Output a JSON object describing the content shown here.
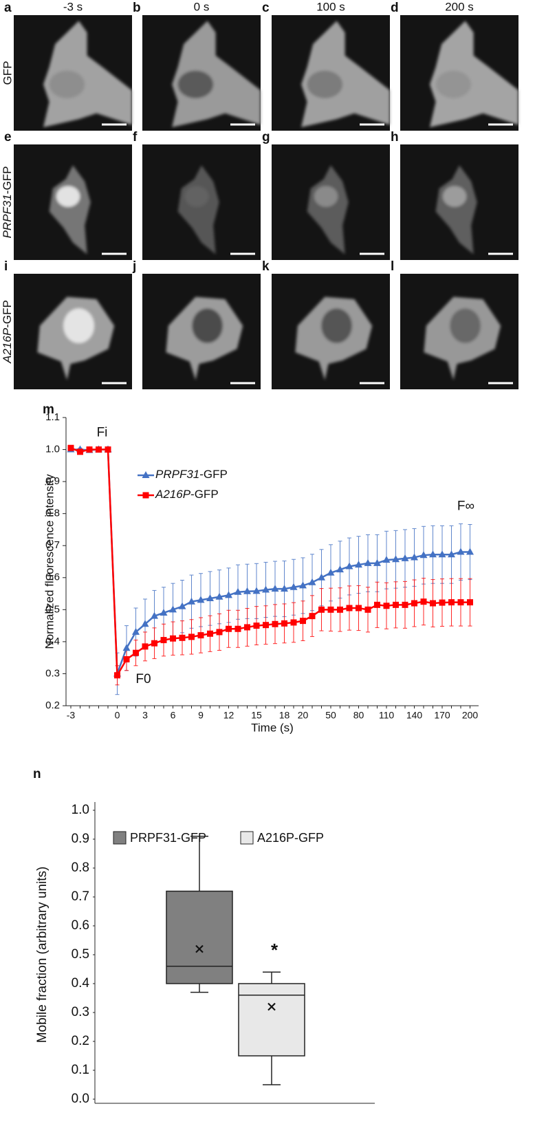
{
  "figure": {
    "columns": [
      "-3 s",
      "0 s",
      "100 s",
      "200 s"
    ],
    "rows": [
      {
        "label": "GFP",
        "panels": [
          "a",
          "b",
          "c",
          "d"
        ]
      },
      {
        "label": "PRPF31-GFP",
        "panels": [
          "e",
          "f",
          "g",
          "h"
        ]
      },
      {
        "label": "A216P-GFP",
        "panels": [
          "i",
          "j",
          "k",
          "l"
        ]
      }
    ]
  },
  "chart_data": [
    {
      "type": "line",
      "panel_label": "m",
      "x_label": "Time (s)",
      "y_label": "Normalized fluorescence intensity",
      "categories": [
        "-3",
        null,
        null,
        null,
        null,
        "0",
        null,
        null,
        "3",
        null,
        null,
        "6",
        null,
        null,
        "9",
        null,
        null,
        "12",
        null,
        null,
        "15",
        null,
        null,
        "18",
        null,
        "20",
        null,
        null,
        "50",
        null,
        null,
        "80",
        null,
        null,
        "110",
        null,
        null,
        "140",
        null,
        null,
        "170",
        null,
        null,
        "200"
      ],
      "series": [
        {
          "name": "PRPF31-GFP",
          "color": "#4472c4",
          "marker": "triangle",
          "values": [
            1.0,
            1.0,
            0.998,
            1.0,
            1.0,
            0.3,
            0.38,
            0.43,
            0.455,
            0.48,
            0.49,
            0.5,
            0.51,
            0.525,
            0.53,
            0.535,
            0.54,
            0.545,
            0.555,
            0.557,
            0.558,
            0.562,
            0.565,
            0.565,
            0.57,
            0.575,
            0.585,
            0.6,
            0.615,
            0.625,
            0.635,
            0.64,
            0.645,
            0.645,
            0.655,
            0.657,
            0.66,
            0.663,
            0.67,
            0.672,
            0.672,
            0.672,
            0.68,
            0.68
          ],
          "errors": [
            0.005,
            0.005,
            0.005,
            0.005,
            0.005,
            0.065,
            0.07,
            0.075,
            0.078,
            0.08,
            0.08,
            0.082,
            0.082,
            0.083,
            0.083,
            0.084,
            0.084,
            0.085,
            0.085,
            0.085,
            0.086,
            0.086,
            0.086,
            0.087,
            0.087,
            0.087,
            0.088,
            0.088,
            0.088,
            0.089,
            0.089,
            0.089,
            0.089,
            0.089,
            0.09,
            0.09,
            0.09,
            0.09,
            0.09,
            0.09,
            0.09,
            0.09,
            0.088,
            0.086
          ]
        },
        {
          "name": "A216P-GFP",
          "color": "#ff0000",
          "marker": "square",
          "values": [
            1.005,
            0.993,
            1.0,
            1.0,
            1.0,
            0.295,
            0.345,
            0.365,
            0.385,
            0.395,
            0.405,
            0.41,
            0.412,
            0.415,
            0.42,
            0.425,
            0.43,
            0.44,
            0.44,
            0.445,
            0.45,
            0.452,
            0.455,
            0.457,
            0.46,
            0.465,
            0.48,
            0.5,
            0.5,
            0.5,
            0.505,
            0.505,
            0.5,
            0.515,
            0.512,
            0.515,
            0.515,
            0.52,
            0.525,
            0.52,
            0.522,
            0.523,
            0.523,
            0.523
          ],
          "errors": [
            0.005,
            0.005,
            0.005,
            0.005,
            0.005,
            0.03,
            0.035,
            0.04,
            0.045,
            0.048,
            0.05,
            0.052,
            0.053,
            0.054,
            0.055,
            0.056,
            0.057,
            0.058,
            0.058,
            0.059,
            0.06,
            0.06,
            0.061,
            0.061,
            0.062,
            0.062,
            0.064,
            0.066,
            0.067,
            0.068,
            0.069,
            0.07,
            0.07,
            0.071,
            0.072,
            0.072,
            0.073,
            0.073,
            0.073,
            0.074,
            0.074,
            0.074,
            0.074,
            0.074
          ]
        }
      ],
      "ylim": [
        0.2,
        1.1
      ],
      "yticks": [
        0.2,
        0.3,
        0.4,
        0.5,
        0.6,
        0.7,
        0.8,
        0.9,
        {
          "value": 1,
          "label": "1.0"
        },
        1.1
      ],
      "annotations": [
        "Fi",
        "F0",
        "F∞"
      ]
    },
    {
      "type": "box",
      "panel_label": "n",
      "y_label": "Mobile fraction (arbitrary units)",
      "series": [
        {
          "name": "PRPF31-GFP",
          "color": "#808080",
          "min": 0.37,
          "q1": 0.4,
          "median": 0.46,
          "q3": 0.72,
          "max": 0.91,
          "mean": 0.52
        },
        {
          "name": "A216P-GFP",
          "color": "#e8e8e8",
          "min": 0.05,
          "q1": 0.15,
          "median": 0.36,
          "q3": 0.4,
          "max": 0.44,
          "mean": 0.32
        }
      ],
      "ylim": [
        0,
        1
      ],
      "yticks": [
        {
          "value": 0,
          "label": "0.0"
        },
        0.1,
        0.2,
        0.3,
        0.4,
        0.5,
        0.6,
        0.7,
        0.8,
        0.9,
        {
          "value": 1,
          "label": "1.0"
        }
      ],
      "annotations": [
        "*"
      ]
    }
  ]
}
